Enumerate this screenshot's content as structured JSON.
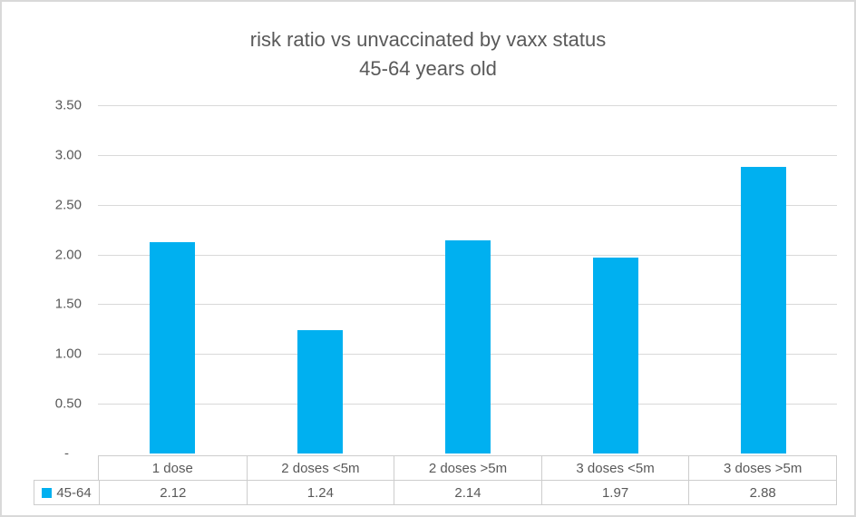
{
  "chart_data": {
    "type": "bar",
    "title": "risk ratio vs unvaccinated by vaxx status",
    "subtitle": "45-64 years old",
    "categories": [
      "1 dose",
      "2 doses <5m",
      "2 doses >5m",
      "3 doses <5m",
      "3 doses >5m"
    ],
    "series": [
      {
        "name": "45-64",
        "values": [
          2.12,
          1.24,
          2.14,
          1.97,
          2.88
        ]
      }
    ],
    "value_labels": [
      "2.12",
      "1.24",
      "2.14",
      "1.97",
      "2.88"
    ],
    "ylim": [
      0,
      3.5
    ],
    "ytick_step": 0.5,
    "ytick_labels": [
      "-",
      "0.50",
      "1.00",
      "1.50",
      "2.00",
      "2.50",
      "3.00",
      "3.50"
    ],
    "grid": true,
    "legend_position": "data-table-left",
    "colors": {
      "bar": "#00B0F0",
      "gridline": "#D9D9D9",
      "text": "#595959",
      "table_border": "#CDCDCD",
      "frame_border": "#D9D9D9"
    }
  }
}
